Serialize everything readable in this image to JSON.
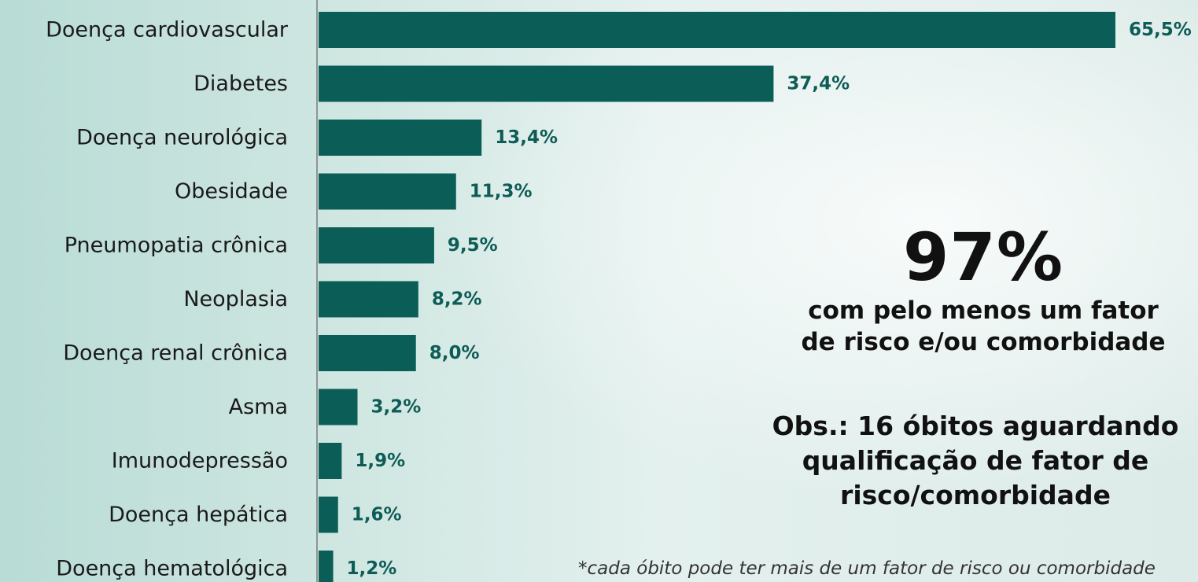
{
  "chart_data": {
    "type": "bar",
    "orientation": "horizontal",
    "categories": [
      "Doença cardiovascular",
      "Diabetes",
      "Doença neurológica",
      "Obesidade",
      "Pneumopatia crônica",
      "Neoplasia",
      "Doença renal crônica",
      "Asma",
      "Imunodepressão",
      "Doença hepática",
      "Doença hematológica"
    ],
    "values": [
      65.5,
      37.4,
      13.4,
      11.3,
      9.5,
      8.2,
      8.0,
      3.2,
      1.9,
      1.6,
      1.2
    ],
    "value_labels": [
      "65,5%",
      "37,4%",
      "13,4%",
      "11,3%",
      "9,5%",
      "8,2%",
      "8,0%",
      "3,2%",
      "1,9%",
      "1,6%",
      "1,2%"
    ],
    "title": "",
    "xlabel": "",
    "ylabel": "",
    "xlim": [
      0,
      66
    ],
    "grid": false,
    "legend": "none",
    "bar_color": "#0b5e57",
    "label_color": "#0d5c56"
  },
  "callout": {
    "big": "97%",
    "line1": "com pelo menos um fator",
    "line2": "de risco e/ou comorbidade"
  },
  "obs": {
    "line1": "Obs.: 16 óbitos aguardando",
    "line2": "qualificação de fator de",
    "line3": "risco/comorbidade"
  },
  "footnote": "*cada óbito pode ter mais de um fator de risco ou comorbidade"
}
